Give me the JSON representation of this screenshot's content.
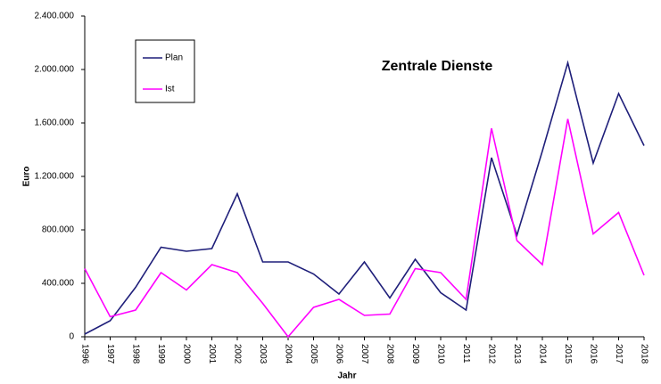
{
  "chart_data": {
    "type": "line",
    "title": "Zentrale Dienste",
    "x_label": "Jahr",
    "y_label": "Euro",
    "categories": [
      "1996",
      "1997",
      "1998",
      "1999",
      "2000",
      "2001",
      "2002",
      "2003",
      "2004",
      "2005",
      "2006",
      "2007",
      "2008",
      "2009",
      "2010",
      "2011",
      "2012",
      "2013",
      "2014",
      "2015",
      "2016",
      "2017",
      "2018"
    ],
    "series": [
      {
        "name": "Plan",
        "color": "#1f1f7a",
        "values": [
          20000,
          120000,
          370000,
          670000,
          640000,
          660000,
          1070000,
          560000,
          560000,
          470000,
          320000,
          560000,
          290000,
          580000,
          330000,
          200000,
          1340000,
          760000,
          1390000,
          2050000,
          1300000,
          1820000,
          1430000
        ]
      },
      {
        "name": "Ist",
        "color": "#ff00ff",
        "values": [
          510000,
          150000,
          200000,
          480000,
          350000,
          540000,
          480000,
          250000,
          0,
          220000,
          280000,
          160000,
          170000,
          510000,
          480000,
          280000,
          1560000,
          720000,
          540000,
          1630000,
          770000,
          930000,
          460000
        ]
      }
    ],
    "ylim": [
      0,
      2400000
    ],
    "yticks": [
      0,
      {
        "value": 400000,
        "label": "400.000"
      },
      {
        "value": 800000,
        "label": "800.000"
      },
      {
        "value": 1200000,
        "label": "1.200.000"
      },
      {
        "value": 1600000,
        "label": "1.600.000"
      },
      {
        "value": 2000000,
        "label": "2.000.000"
      },
      {
        "value": 2400000,
        "label": "2.400.000"
      }
    ],
    "grid": false
  }
}
